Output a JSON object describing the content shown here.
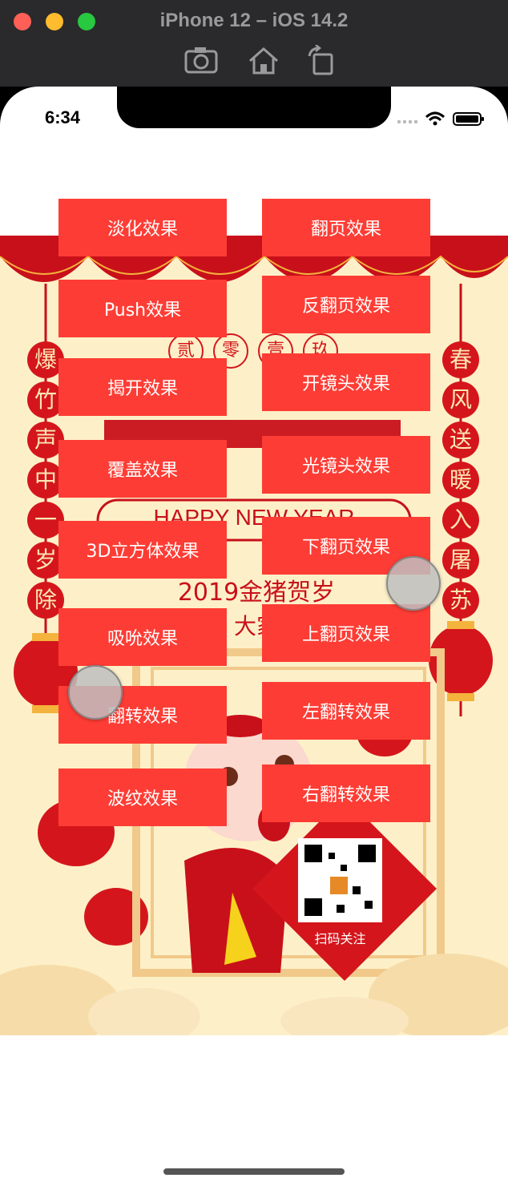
{
  "window": {
    "title": "iPhone 12 – iOS 14.2"
  },
  "status_bar": {
    "time": "6:34"
  },
  "poster": {
    "left_couplet": [
      "爆",
      "竹",
      "声",
      "中",
      "一",
      "岁",
      "除"
    ],
    "right_couplet": [
      "春",
      "风",
      "送",
      "暖",
      "入",
      "屠",
      "苏"
    ],
    "top_circles": [
      "贰",
      "零",
      "壹",
      "玖"
    ],
    "english": "HAPPY NEW YEAR",
    "subtitle": "2019金猪贺岁",
    "subtitle2": "大家",
    "qr_caption": "扫码关注"
  },
  "buttons_left": [
    "淡化效果",
    "Push效果",
    "揭开效果",
    "覆盖效果",
    "3D立方体效果",
    "吸吮效果",
    "翻转效果",
    "波纹效果"
  ],
  "buttons_right": [
    "翻页效果",
    "反翻页效果",
    "开镜头效果",
    "光镜头效果",
    "下翻页效果",
    "上翻页效果",
    "左翻转效果",
    "右翻转效果"
  ],
  "colors": {
    "button": "#fd3d35",
    "poster_bg": "#fdf0c8",
    "poster_red": "#d4161c"
  }
}
